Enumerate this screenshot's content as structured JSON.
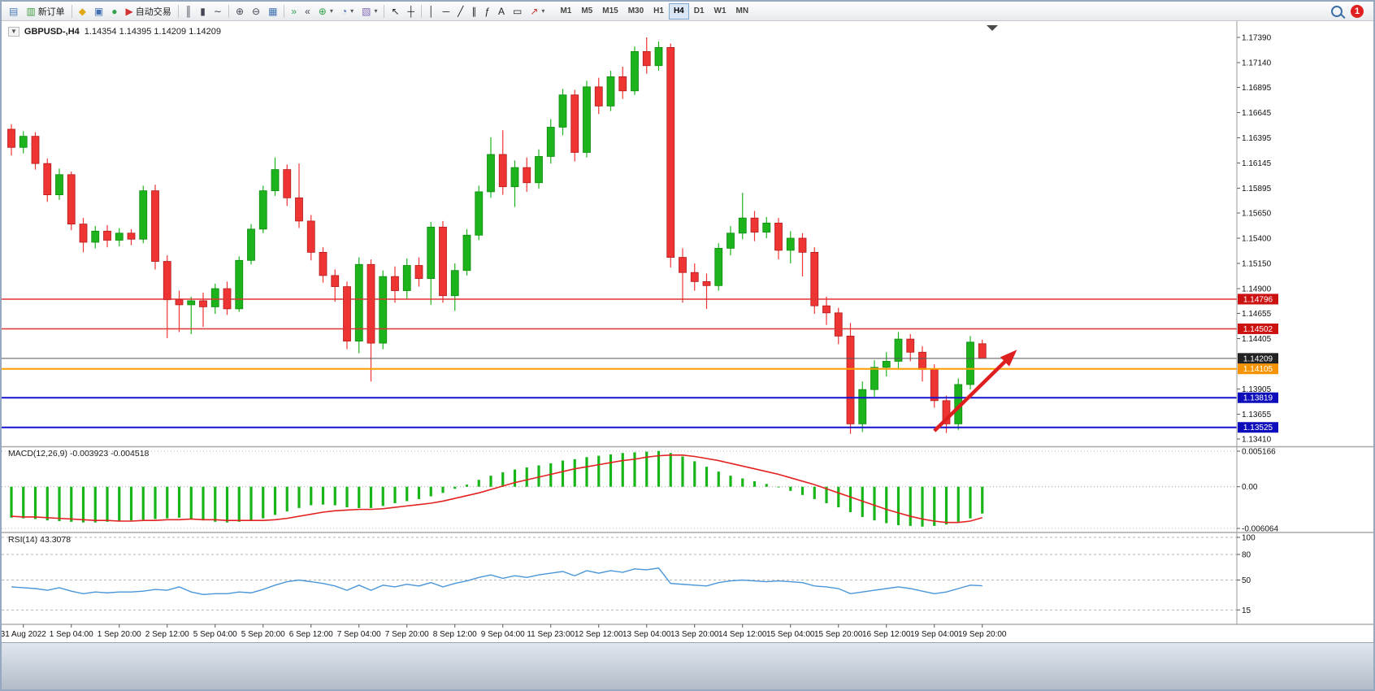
{
  "window": {
    "symbol_title": "GBPUSD-,H4",
    "ohlc_line": "1.14354 1.14395 1.14209 1.14209",
    "collapse_glyph": "▼",
    "notification_count": "1"
  },
  "toolbar": {
    "left_buttons": [
      {
        "name": "new-chart-button",
        "glyph": "▤",
        "color": "#4a7ab5"
      },
      {
        "name": "new-order-button",
        "glyph": "▥",
        "color": "#3f9e3f",
        "label": "新订单"
      },
      {
        "sep": true
      },
      {
        "name": "metaeditor-button",
        "glyph": "◆",
        "color": "#dfa918"
      },
      {
        "name": "market-watch-button",
        "glyph": "▣",
        "color": "#3f6fb0"
      },
      {
        "name": "navigator-button",
        "glyph": "●",
        "color": "#33a04a"
      },
      {
        "name": "autotrading-button",
        "glyph": "▶",
        "color": "#d23434",
        "label": "自动交易"
      },
      {
        "sep": true
      },
      {
        "name": "bar-chart-button",
        "glyph": "║",
        "color": "#444455"
      },
      {
        "name": "candlestick-chart-button",
        "glyph": "▮",
        "color": "#444455"
      },
      {
        "name": "line-chart-button",
        "glyph": "∼",
        "color": "#444455"
      },
      {
        "sep": true
      },
      {
        "name": "zoom-in-button",
        "glyph": "⊕",
        "color": "#444455"
      },
      {
        "name": "zoom-out-button",
        "glyph": "⊖",
        "color": "#444455"
      },
      {
        "name": "tile-windows-button",
        "glyph": "▦",
        "color": "#3f6fb0"
      },
      {
        "sep": true
      },
      {
        "name": "auto-scroll-button",
        "glyph": "»",
        "color": "#33a04a"
      },
      {
        "name": "chart-shift-button",
        "glyph": "«",
        "color": "#444455"
      },
      {
        "name": "indicators-list-button",
        "glyph": "⊕",
        "color": "#33a04a",
        "caret": true
      },
      {
        "name": "periods-button",
        "glyph": "◔",
        "color": "#3f6fb0",
        "caret": true
      },
      {
        "name": "templates-button",
        "glyph": "▧",
        "color": "#8468b8",
        "caret": true
      },
      {
        "sep": true
      },
      {
        "name": "cursor-button",
        "glyph": "↖",
        "color": "#222222"
      },
      {
        "name": "crosshair-button",
        "glyph": "┼",
        "color": "#222222"
      },
      {
        "sep": true
      },
      {
        "name": "vertical-line-button",
        "glyph": "│",
        "color": "#222222"
      },
      {
        "name": "horizontal-line-button",
        "glyph": "─",
        "color": "#222222"
      },
      {
        "name": "trendline-button",
        "glyph": "╱",
        "color": "#222222"
      },
      {
        "name": "channel-button",
        "glyph": "∥",
        "color": "#222222"
      },
      {
        "name": "fibonacci-button",
        "glyph": "ƒ",
        "color": "#222222"
      },
      {
        "name": "text-button",
        "glyph": "A",
        "color": "#222222"
      },
      {
        "name": "text-label-button",
        "glyph": "▭",
        "color": "#222222"
      },
      {
        "name": "arrows-button",
        "glyph": "↗",
        "color": "#c33",
        "caret": true
      }
    ],
    "timeframes": [
      "M1",
      "M5",
      "M15",
      "M30",
      "H1",
      "H4",
      "D1",
      "W1",
      "MN"
    ],
    "active_timeframe": "H4"
  },
  "chart_data": {
    "type": "candlestick",
    "symbol": "GBPUSD-",
    "period": "H4",
    "ohlc_display": {
      "open": "1.14354",
      "high": "1.14395",
      "low": "1.14209",
      "close": "1.14209"
    },
    "colors": {
      "up": "#1db31d",
      "up_stroke": "#0e8c0e",
      "down": "#ef3434",
      "down_stroke": "#b31b1b",
      "background": "#ffffff",
      "axis_text": "#111111"
    },
    "price_axis": {
      "min": 1.1341,
      "max": 1.1739,
      "ticks": [
        "1.17390",
        "1.17140",
        "1.16895",
        "1.16645",
        "1.16395",
        "1.16145",
        "1.15895",
        "1.15650",
        "1.15400",
        "1.15150",
        "1.14900",
        "1.14655",
        "1.14405",
        "1.13905",
        "1.13655",
        "1.13410"
      ]
    },
    "time_labels": [
      "31 Aug 2022",
      "1 Sep 04:00",
      "1 Sep 20:00",
      "2 Sep 12:00",
      "5 Sep 04:00",
      "5 Sep 20:00",
      "6 Sep 12:00",
      "7 Sep 04:00",
      "7 Sep 20:00",
      "8 Sep 12:00",
      "9 Sep 04:00",
      "11 Sep 23:00",
      "12 Sep 12:00",
      "13 Sep 04:00",
      "13 Sep 20:00",
      "14 Sep 12:00",
      "15 Sep 04:00",
      "15 Sep 20:00",
      "16 Sep 12:00",
      "19 Sep 04:00",
      "19 Sep 20:00"
    ],
    "label_start": 1,
    "label_step": 4,
    "candles": [
      [
        1.1648,
        1.1653,
        1.1622,
        1.163
      ],
      [
        1.163,
        1.1646,
        1.1624,
        1.1641
      ],
      [
        1.1641,
        1.1645,
        1.1608,
        1.1614
      ],
      [
        1.1614,
        1.1619,
        1.1576,
        1.1583
      ],
      [
        1.1583,
        1.1609,
        1.1578,
        1.1603
      ],
      [
        1.1603,
        1.1606,
        1.1548,
        1.1554
      ],
      [
        1.1554,
        1.156,
        1.1526,
        1.1536
      ],
      [
        1.1536,
        1.1552,
        1.153,
        1.1547
      ],
      [
        1.1547,
        1.1553,
        1.1531,
        1.1538
      ],
      [
        1.1538,
        1.155,
        1.1532,
        1.1545
      ],
      [
        1.1545,
        1.1549,
        1.1533,
        1.1539
      ],
      [
        1.1539,
        1.1592,
        1.1535,
        1.1587
      ],
      [
        1.1587,
        1.1593,
        1.1509,
        1.1517
      ],
      [
        1.1517,
        1.1523,
        1.1441,
        1.1479
      ],
      [
        1.1479,
        1.1488,
        1.1447,
        1.1474
      ],
      [
        1.1474,
        1.1482,
        1.1445,
        1.1478
      ],
      [
        1.1478,
        1.1486,
        1.1452,
        1.1472
      ],
      [
        1.1472,
        1.1495,
        1.1465,
        1.149
      ],
      [
        1.149,
        1.1497,
        1.1464,
        1.147
      ],
      [
        1.147,
        1.1522,
        1.1467,
        1.1518
      ],
      [
        1.1518,
        1.1554,
        1.1514,
        1.1549
      ],
      [
        1.1549,
        1.1592,
        1.1545,
        1.1587
      ],
      [
        1.1587,
        1.162,
        1.1582,
        1.1608
      ],
      [
        1.1608,
        1.1613,
        1.1572,
        1.158
      ],
      [
        1.158,
        1.1614,
        1.155,
        1.1557
      ],
      [
        1.1557,
        1.1563,
        1.1518,
        1.1526
      ],
      [
        1.1526,
        1.1531,
        1.1496,
        1.1503
      ],
      [
        1.1503,
        1.1509,
        1.1477,
        1.1492
      ],
      [
        1.1492,
        1.1497,
        1.143,
        1.1438
      ],
      [
        1.1438,
        1.1521,
        1.1426,
        1.1514
      ],
      [
        1.1514,
        1.1519,
        1.1398,
        1.1436
      ],
      [
        1.1436,
        1.1508,
        1.143,
        1.1502
      ],
      [
        1.1502,
        1.1512,
        1.1476,
        1.1488
      ],
      [
        1.1488,
        1.152,
        1.148,
        1.1513
      ],
      [
        1.1513,
        1.1521,
        1.1492,
        1.15
      ],
      [
        1.15,
        1.1556,
        1.1474,
        1.1551
      ],
      [
        1.1551,
        1.1557,
        1.1476,
        1.1483
      ],
      [
        1.1483,
        1.1515,
        1.1468,
        1.1508
      ],
      [
        1.1508,
        1.1549,
        1.1503,
        1.1543
      ],
      [
        1.1543,
        1.1592,
        1.1538,
        1.1586
      ],
      [
        1.1586,
        1.164,
        1.158,
        1.1623
      ],
      [
        1.1623,
        1.1647,
        1.1583,
        1.1591
      ],
      [
        1.1591,
        1.1617,
        1.1571,
        1.161
      ],
      [
        1.161,
        1.162,
        1.1586,
        1.1595
      ],
      [
        1.1595,
        1.1628,
        1.1589,
        1.1621
      ],
      [
        1.1621,
        1.1658,
        1.1614,
        1.165
      ],
      [
        1.165,
        1.1688,
        1.1642,
        1.1682
      ],
      [
        1.1682,
        1.1687,
        1.1616,
        1.1625
      ],
      [
        1.1625,
        1.1696,
        1.162,
        1.169
      ],
      [
        1.169,
        1.1699,
        1.1663,
        1.1671
      ],
      [
        1.1671,
        1.1706,
        1.1666,
        1.17
      ],
      [
        1.17,
        1.171,
        1.1678,
        1.1686
      ],
      [
        1.1686,
        1.173,
        1.1682,
        1.1725
      ],
      [
        1.1725,
        1.1739,
        1.1703,
        1.1711
      ],
      [
        1.1711,
        1.1735,
        1.1706,
        1.1729
      ],
      [
        1.1729,
        1.1733,
        1.1511,
        1.1521
      ],
      [
        1.1521,
        1.153,
        1.1476,
        1.1506
      ],
      [
        1.1506,
        1.1515,
        1.1488,
        1.1497
      ],
      [
        1.1497,
        1.1505,
        1.147,
        1.1493
      ],
      [
        1.1493,
        1.1535,
        1.1488,
        1.153
      ],
      [
        1.153,
        1.1552,
        1.1523,
        1.1545
      ],
      [
        1.1545,
        1.1585,
        1.1539,
        1.156
      ],
      [
        1.156,
        1.1567,
        1.1537,
        1.1546
      ],
      [
        1.1546,
        1.1561,
        1.154,
        1.1555
      ],
      [
        1.1555,
        1.156,
        1.1519,
        1.1528
      ],
      [
        1.1528,
        1.1547,
        1.1515,
        1.154
      ],
      [
        1.154,
        1.1545,
        1.1502,
        1.1526
      ],
      [
        1.1526,
        1.1531,
        1.1465,
        1.1473
      ],
      [
        1.1473,
        1.1482,
        1.1454,
        1.1466
      ],
      [
        1.1466,
        1.1471,
        1.1435,
        1.1443
      ],
      [
        1.1443,
        1.1456,
        1.1346,
        1.1356
      ],
      [
        1.1356,
        1.1398,
        1.1348,
        1.139
      ],
      [
        1.139,
        1.1419,
        1.1383,
        1.1412
      ],
      [
        1.1412,
        1.1427,
        1.1403,
        1.1418
      ],
      [
        1.1418,
        1.1447,
        1.141,
        1.144
      ],
      [
        1.144,
        1.1445,
        1.1418,
        1.1427
      ],
      [
        1.1427,
        1.1433,
        1.1398,
        1.141
      ],
      [
        1.141,
        1.1415,
        1.1372,
        1.1379
      ],
      [
        1.1379,
        1.1384,
        1.1347,
        1.1356
      ],
      [
        1.1356,
        1.1401,
        1.135,
        1.1395
      ],
      [
        1.1395,
        1.1443,
        1.139,
        1.1437
      ],
      [
        1.14354,
        1.14395,
        1.14209,
        1.14209
      ]
    ],
    "hlines": [
      {
        "price": 1.14796,
        "label": "1.14796",
        "color": "#e03535",
        "label_bg": "#cc1111",
        "width": 1.5
      },
      {
        "price": 1.14502,
        "label": "1.14502",
        "color": "#e03535",
        "label_bg": "#cc1111",
        "width": 1.5
      },
      {
        "price": 1.14209,
        "label": "1.14209",
        "color": "#555555",
        "label_bg": "#222222",
        "width": 1
      },
      {
        "price": 1.14105,
        "label": "1.14105",
        "color": "#ff9d00",
        "label_bg": "#f59300",
        "width": 2
      },
      {
        "price": 1.13819,
        "label": "1.13819",
        "color": "#1414cc",
        "label_bg": "#0d0dbb",
        "width": 2
      },
      {
        "price": 1.13525,
        "label": "1.13525",
        "color": "#1414cc",
        "label_bg": "#0d0dbb",
        "width": 2
      }
    ],
    "arrow": {
      "from_index": 77,
      "from_price": 1.1349,
      "to_index": 83.6,
      "to_price": 1.1426,
      "color": "#dd1f1f"
    },
    "macd": {
      "label": "MACD(12,26,9)",
      "values": "-0.003923 -0.004518",
      "axis": {
        "max": 0.005166,
        "min": -0.006064,
        "labels": [
          "0.005166",
          "0.00",
          "-0.006064"
        ]
      },
      "histogram_color": "#17b517",
      "signal_color": "#e32222",
      "histogram": [
        -0.0045,
        -0.0046,
        -0.0047,
        -0.0049,
        -0.005,
        -0.0051,
        -0.0052,
        -0.0052,
        -0.0051,
        -0.005,
        -0.0049,
        -0.0048,
        -0.0047,
        -0.0046,
        -0.0045,
        -0.0047,
        -0.0049,
        -0.0051,
        -0.0052,
        -0.0051,
        -0.0049,
        -0.0046,
        -0.0041,
        -0.0036,
        -0.0031,
        -0.0027,
        -0.0026,
        -0.0027,
        -0.003,
        -0.0031,
        -0.0031,
        -0.0028,
        -0.0024,
        -0.0021,
        -0.0018,
        -0.0014,
        -0.0009,
        -0.0003,
        0.0003,
        0.001,
        0.0016,
        0.0021,
        0.0025,
        0.0028,
        0.0031,
        0.0034,
        0.0038,
        0.004,
        0.0043,
        0.0045,
        0.0047,
        0.0049,
        0.005,
        0.0051,
        0.0052,
        0.0049,
        0.0044,
        0.0037,
        0.0029,
        0.0022,
        0.0016,
        0.0012,
        0.0008,
        0.0004,
        -0.0001,
        -0.0006,
        -0.0012,
        -0.0018,
        -0.0024,
        -0.003,
        -0.0037,
        -0.0044,
        -0.0049,
        -0.0053,
        -0.0056,
        -0.0057,
        -0.0058,
        -0.0057,
        -0.0055,
        -0.0051,
        -0.0046,
        -0.0039
      ],
      "signal": [
        -0.0043,
        -0.0044,
        -0.0044,
        -0.0045,
        -0.0046,
        -0.0047,
        -0.0048,
        -0.0049,
        -0.0049,
        -0.005,
        -0.005,
        -0.0049,
        -0.0049,
        -0.0048,
        -0.0048,
        -0.0047,
        -0.0048,
        -0.0048,
        -0.0049,
        -0.0049,
        -0.0049,
        -0.0049,
        -0.0048,
        -0.0046,
        -0.0043,
        -0.004,
        -0.0037,
        -0.0035,
        -0.0034,
        -0.0033,
        -0.0033,
        -0.0032,
        -0.003,
        -0.0028,
        -0.0026,
        -0.0024,
        -0.0021,
        -0.0017,
        -0.0013,
        -0.0009,
        -0.0004,
        0.0001,
        0.0006,
        0.001,
        0.0014,
        0.0018,
        0.0022,
        0.0026,
        0.0029,
        0.0032,
        0.0035,
        0.0038,
        0.004,
        0.0043,
        0.0045,
        0.0046,
        0.0046,
        0.0044,
        0.0041,
        0.0038,
        0.0034,
        0.003,
        0.0026,
        0.0022,
        0.0018,
        0.0013,
        0.0008,
        0.0003,
        -0.0003,
        -0.0009,
        -0.0015,
        -0.0021,
        -0.0027,
        -0.0033,
        -0.0038,
        -0.0043,
        -0.0047,
        -0.005,
        -0.0052,
        -0.0052,
        -0.005,
        -0.0045
      ]
    },
    "rsi": {
      "label": "RSI(14)",
      "value": "43.3078",
      "range": [
        0,
        100
      ],
      "levels": [
        100,
        80,
        50,
        15
      ],
      "axis_labels": [
        "100",
        "80",
        "50",
        "15"
      ],
      "line_color": "#4a96d9",
      "values": [
        42,
        41,
        40,
        38,
        41,
        37,
        34,
        36,
        35,
        36,
        36,
        37,
        39,
        38,
        42,
        36,
        33,
        34,
        34,
        36,
        35,
        39,
        44,
        48,
        50,
        48,
        46,
        43,
        38,
        44,
        38,
        44,
        42,
        45,
        43,
        47,
        42,
        46,
        49,
        53,
        56,
        52,
        55,
        53,
        56,
        58,
        60,
        55,
        61,
        58,
        61,
        59,
        63,
        62,
        64,
        46,
        45,
        44,
        43,
        47,
        49,
        50,
        49,
        48,
        49,
        48,
        47,
        43,
        42,
        40,
        34,
        36,
        38,
        40,
        42,
        40,
        37,
        34,
        36,
        40,
        44,
        43.3
      ]
    }
  }
}
